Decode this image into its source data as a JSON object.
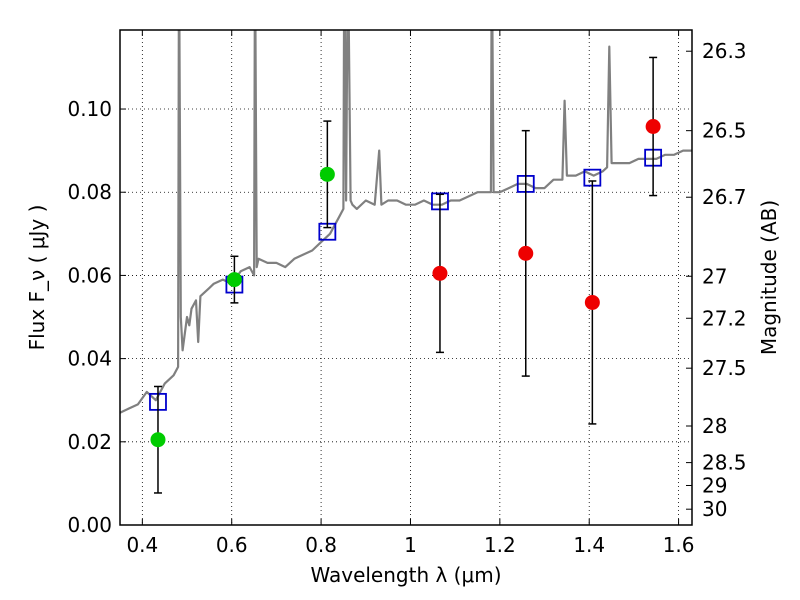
{
  "chart_data": {
    "type": "scatter",
    "title": "",
    "xlabel": "Wavelength  λ (μm)",
    "ylabel": "Flux  F_ν  ( μJy )",
    "ylabel_right": "Magnitude (AB)",
    "xlim": [
      0.35,
      1.63
    ],
    "ylim": [
      0.0,
      0.119
    ],
    "grid": true,
    "x_ticks": [
      0.4,
      0.6,
      0.8,
      1.0,
      1.2,
      1.4,
      1.6
    ],
    "x_tick_labels": [
      "0.4",
      "0.6",
      "0.8",
      "1",
      "1.2",
      "1.4",
      "1.6"
    ],
    "y_ticks": [
      0.0,
      0.02,
      0.04,
      0.06,
      0.08,
      0.1
    ],
    "y_tick_labels": [
      "0.00",
      "0.02",
      "0.04",
      "0.06",
      "0.08",
      "0.10"
    ],
    "right_axis": {
      "ticks": [
        {
          "label": "26.3",
          "flux": 0.1139
        },
        {
          "label": "26.5",
          "flux": 0.0948
        },
        {
          "label": "26.7",
          "flux": 0.0788
        },
        {
          "label": "27",
          "flux": 0.0598
        },
        {
          "label": "27.2",
          "flux": 0.0497
        },
        {
          "label": "27.5",
          "flux": 0.0377
        },
        {
          "label": "28",
          "flux": 0.0238
        },
        {
          "label": "28.5",
          "flux": 0.015
        },
        {
          "label": "29",
          "flux": 0.0095
        },
        {
          "label": "30",
          "flux": 0.0038
        }
      ]
    },
    "series": [
      {
        "kind": "spectrum",
        "color": "#808080",
        "points": [
          [
            0.35,
            0.027
          ],
          [
            0.37,
            0.028
          ],
          [
            0.39,
            0.029
          ],
          [
            0.41,
            0.032
          ],
          [
            0.43,
            0.03
          ],
          [
            0.45,
            0.034
          ],
          [
            0.47,
            0.036
          ],
          [
            0.48,
            0.038
          ],
          [
            0.482,
            0.14
          ],
          [
            0.486,
            0.05
          ],
          [
            0.49,
            0.042
          ],
          [
            0.495,
            0.046
          ],
          [
            0.5,
            0.05
          ],
          [
            0.505,
            0.048
          ],
          [
            0.51,
            0.052
          ],
          [
            0.52,
            0.054
          ],
          [
            0.525,
            0.044
          ],
          [
            0.53,
            0.055
          ],
          [
            0.54,
            0.056
          ],
          [
            0.55,
            0.057
          ],
          [
            0.56,
            0.058
          ],
          [
            0.58,
            0.059
          ],
          [
            0.6,
            0.058
          ],
          [
            0.62,
            0.061
          ],
          [
            0.64,
            0.062
          ],
          [
            0.65,
            0.06
          ],
          [
            0.652,
            0.14
          ],
          [
            0.656,
            0.062
          ],
          [
            0.66,
            0.064
          ],
          [
            0.68,
            0.063
          ],
          [
            0.7,
            0.063
          ],
          [
            0.72,
            0.062
          ],
          [
            0.74,
            0.064
          ],
          [
            0.76,
            0.065
          ],
          [
            0.78,
            0.066
          ],
          [
            0.8,
            0.068
          ],
          [
            0.82,
            0.07
          ],
          [
            0.84,
            0.074
          ],
          [
            0.85,
            0.076
          ],
          [
            0.852,
            0.14
          ],
          [
            0.856,
            0.078
          ],
          [
            0.86,
            0.14
          ],
          [
            0.866,
            0.078
          ],
          [
            0.87,
            0.077
          ],
          [
            0.88,
            0.076
          ],
          [
            0.9,
            0.078
          ],
          [
            0.92,
            0.077
          ],
          [
            0.93,
            0.09
          ],
          [
            0.935,
            0.077
          ],
          [
            0.95,
            0.078
          ],
          [
            0.97,
            0.078
          ],
          [
            0.99,
            0.077
          ],
          [
            1.01,
            0.077
          ],
          [
            1.03,
            0.078
          ],
          [
            1.05,
            0.077
          ],
          [
            1.07,
            0.077
          ],
          [
            1.09,
            0.078
          ],
          [
            1.11,
            0.078
          ],
          [
            1.13,
            0.079
          ],
          [
            1.15,
            0.08
          ],
          [
            1.17,
            0.08
          ],
          [
            1.18,
            0.08
          ],
          [
            1.182,
            0.14
          ],
          [
            1.186,
            0.08
          ],
          [
            1.2,
            0.08
          ],
          [
            1.22,
            0.081
          ],
          [
            1.24,
            0.082
          ],
          [
            1.26,
            0.082
          ],
          [
            1.28,
            0.081
          ],
          [
            1.3,
            0.081
          ],
          [
            1.32,
            0.083
          ],
          [
            1.34,
            0.083
          ],
          [
            1.345,
            0.102
          ],
          [
            1.35,
            0.084
          ],
          [
            1.37,
            0.084
          ],
          [
            1.39,
            0.085
          ],
          [
            1.41,
            0.084
          ],
          [
            1.43,
            0.085
          ],
          [
            1.44,
            0.086
          ],
          [
            1.445,
            0.115
          ],
          [
            1.45,
            0.087
          ],
          [
            1.47,
            0.087
          ],
          [
            1.49,
            0.087
          ],
          [
            1.51,
            0.088
          ],
          [
            1.53,
            0.088
          ],
          [
            1.55,
            0.088
          ],
          [
            1.57,
            0.089
          ],
          [
            1.59,
            0.089
          ],
          [
            1.61,
            0.09
          ],
          [
            1.63,
            0.09
          ]
        ]
      },
      {
        "kind": "model",
        "marker": "square",
        "color": "#0000cc",
        "points": [
          {
            "x": 0.435,
            "y": 0.0296
          },
          {
            "x": 0.606,
            "y": 0.0578
          },
          {
            "x": 0.814,
            "y": 0.0705
          },
          {
            "x": 1.066,
            "y": 0.0778
          },
          {
            "x": 1.258,
            "y": 0.082
          },
          {
            "x": 1.407,
            "y": 0.0835
          },
          {
            "x": 1.543,
            "y": 0.0883
          }
        ]
      },
      {
        "kind": "observed",
        "marker": "circle",
        "color": "#00cc00",
        "points": [
          {
            "x": 0.435,
            "y": 0.0205,
            "err": 0.0128
          },
          {
            "x": 0.606,
            "y": 0.059,
            "err": 0.0056
          },
          {
            "x": 0.814,
            "y": 0.0843,
            "err": 0.0128
          }
        ]
      },
      {
        "kind": "observed",
        "marker": "circle",
        "color": "#ee0000",
        "points": [
          {
            "x": 1.066,
            "y": 0.0605,
            "err": 0.019
          },
          {
            "x": 1.258,
            "y": 0.0653,
            "err": 0.0295
          },
          {
            "x": 1.407,
            "y": 0.0535,
            "err": 0.0292
          },
          {
            "x": 1.543,
            "y": 0.0958,
            "err": 0.0166
          }
        ]
      }
    ]
  }
}
